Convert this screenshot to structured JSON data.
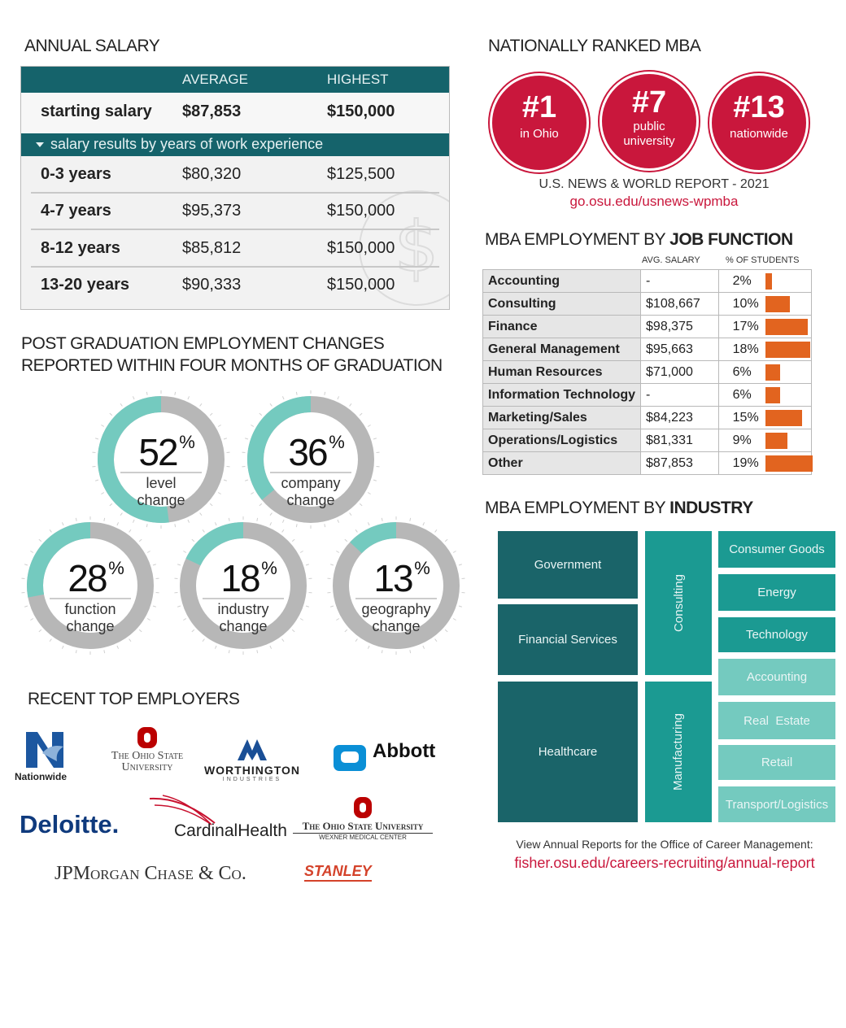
{
  "salary": {
    "title": "ANNUAL SALARY",
    "col_average": "AVERAGE",
    "col_highest": "HIGHEST",
    "starting": {
      "label": "starting salary",
      "average": "$87,853",
      "highest": "$150,000"
    },
    "experience_header": "salary results by years of work experience",
    "rows": [
      {
        "years": "0-3 years",
        "average": "$80,320",
        "highest": "$125,500"
      },
      {
        "years": "4-7 years",
        "average": "$95,373",
        "highest": "$150,000"
      },
      {
        "years": "8-12 years",
        "average": "$85,812",
        "highest": "$150,000"
      },
      {
        "years": "13-20 years",
        "average": "$90,333",
        "highest": "$150,000"
      }
    ]
  },
  "ranking": {
    "title": "NATIONALLY RANKED MBA",
    "items": [
      {
        "rank": "#1",
        "label_1": "in Ohio",
        "label_2": ""
      },
      {
        "rank": "#7",
        "label_1": "public",
        "label_2": "university"
      },
      {
        "rank": "#13",
        "label_1": "nationwide",
        "label_2": ""
      }
    ],
    "source": "U.S. NEWS & WORLD REPORT - 2021",
    "link": "go.osu.edu/usnews-wpmba",
    "colors": {
      "circle": "#c9173c",
      "link": "#c9173c"
    }
  },
  "post_grad": {
    "title_1": "POST GRADUATION EMPLOYMENT CHANGES",
    "title_2": "REPORTED WITHIN FOUR MONTHS OF GRADUATION",
    "percent_sign": "%"
  },
  "job_function": {
    "title_light": "MBA EMPLOYMENT BY ",
    "title_bold": "JOB FUNCTION",
    "col_salary": "AVG. SALARY",
    "col_percent": "% OF STUDENTS"
  },
  "industry": {
    "title_light": "MBA EMPLOYMENT BY ",
    "title_bold": "INDUSTRY",
    "blocks": {
      "government": "Government",
      "financial_services": "Financial Services",
      "healthcare": "Healthcare",
      "consulting": "Consulting",
      "manufacturing": "Manufacturing",
      "consumer_goods": "Consumer Goods",
      "energy": "Energy",
      "technology": "Technology",
      "accounting": "Accounting",
      "real_estate": "Real  Estate",
      "retail": "Retail",
      "transport": "Transport/Logistics"
    },
    "footer": "View Annual Reports for the Office of Career Management:",
    "footer_link": "fisher.osu.edu/careers-recruiting/annual-report"
  },
  "employers": {
    "title": "RECENT TOP EMPLOYERS",
    "nationwide": "Nationwide",
    "osu_1": "The Ohio State",
    "osu_2": "University",
    "worthington": "WORTHINGTON",
    "worthington_sub": "INDUSTRIES",
    "abbott": "Abbott",
    "deloitte": "Deloitte.",
    "cardinal": "CardinalHealth",
    "osu_wexner": "The Ohio State University",
    "osu_wexner_sub": "WEXNER MEDICAL CENTER",
    "jpmorgan": "JPMorgan Chase & Co.",
    "stanley": "STANLEY"
  },
  "chart_data": [
    {
      "type": "pie",
      "title": "",
      "series": [
        {
          "name": "level change",
          "value": 52
        },
        {
          "name": "company change",
          "value": 36
        },
        {
          "name": "function change",
          "value": 28
        },
        {
          "name": "industry change",
          "value": 18
        },
        {
          "name": "geography change",
          "value": 13
        }
      ],
      "colors": {
        "fill": "#74cabf",
        "rest": "#b7b7b7"
      }
    },
    {
      "type": "bar",
      "title": "MBA EMPLOYMENT BY JOB FUNCTION",
      "categories": [
        "Accounting",
        "Consulting",
        "Finance",
        "General Management",
        "Human Resources",
        "Information Technology",
        "Marketing/Sales",
        "Operations/Logistics",
        "Other"
      ],
      "avg_salary": [
        "-",
        "$108,667",
        "$98,375",
        "$95,663",
        "$71,000",
        "-",
        "$84,223",
        "$81,331",
        "$87,853"
      ],
      "values": [
        2,
        10,
        17,
        18,
        6,
        6,
        15,
        9,
        19
      ],
      "labels": [
        "2%",
        "10%",
        "17%",
        "18%",
        "6%",
        "6%",
        "15%",
        "9%",
        "19%"
      ],
      "colors": {
        "bar": "#e2641f"
      }
    }
  ]
}
